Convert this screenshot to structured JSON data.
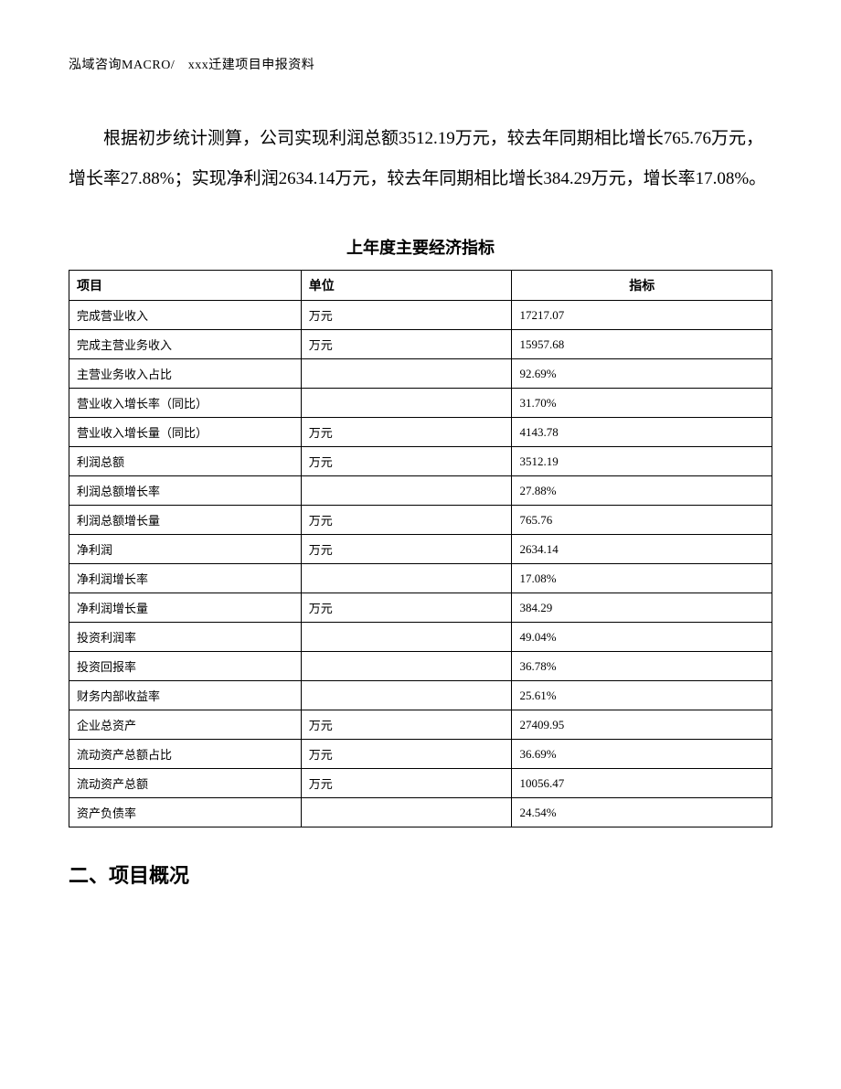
{
  "header": {
    "text": "泓域咨询MACRO/　xxx迁建项目申报资料"
  },
  "body_paragraph": "根据初步统计测算，公司实现利润总额3512.19万元，较去年同期相比增长765.76万元，增长率27.88%；实现净利润2634.14万元，较去年同期相比增长384.29万元，增长率17.08%。",
  "table": {
    "title": "上年度主要经济指标",
    "columns": [
      "项目",
      "单位",
      "指标"
    ],
    "rows": [
      {
        "project": "完成营业收入",
        "unit": "万元",
        "value": "17217.07"
      },
      {
        "project": "完成主营业务收入",
        "unit": "万元",
        "value": "15957.68"
      },
      {
        "project": "主营业务收入占比",
        "unit": "",
        "value": "92.69%"
      },
      {
        "project": "营业收入增长率（同比）",
        "unit": "",
        "value": "31.70%"
      },
      {
        "project": "营业收入增长量（同比）",
        "unit": "万元",
        "value": "4143.78"
      },
      {
        "project": "利润总额",
        "unit": "万元",
        "value": "3512.19"
      },
      {
        "project": "利润总额增长率",
        "unit": "",
        "value": "27.88%"
      },
      {
        "project": "利润总额增长量",
        "unit": "万元",
        "value": "765.76"
      },
      {
        "project": "净利润",
        "unit": "万元",
        "value": "2634.14"
      },
      {
        "project": "净利润增长率",
        "unit": "",
        "value": "17.08%"
      },
      {
        "project": "净利润增长量",
        "unit": "万元",
        "value": "384.29"
      },
      {
        "project": "投资利润率",
        "unit": "",
        "value": "49.04%"
      },
      {
        "project": "投资回报率",
        "unit": "",
        "value": "36.78%"
      },
      {
        "project": "财务内部收益率",
        "unit": "",
        "value": "25.61%"
      },
      {
        "project": "企业总资产",
        "unit": "万元",
        "value": "27409.95"
      },
      {
        "project": "流动资产总额占比",
        "unit": "万元",
        "value": "36.69%"
      },
      {
        "project": "流动资产总额",
        "unit": "万元",
        "value": "10056.47"
      },
      {
        "project": "资产负债率",
        "unit": "",
        "value": "24.54%"
      }
    ]
  },
  "section_heading": "二、项目概况"
}
